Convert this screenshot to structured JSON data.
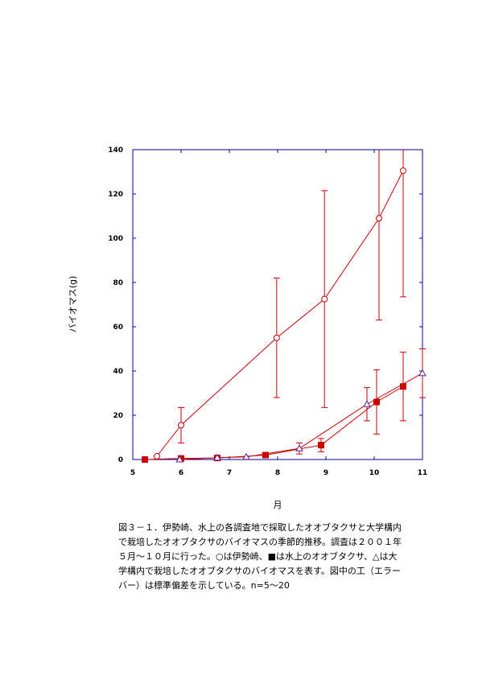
{
  "chart_data": {
    "type": "line",
    "title": "",
    "xlabel": "月",
    "ylabel": "バイオマス(g)",
    "xlim": [
      5,
      11
    ],
    "ylim": [
      0,
      140
    ],
    "x_ticks": [
      "5",
      "6",
      "7",
      "8",
      "9",
      "10",
      "11"
    ],
    "y_ticks": [
      "0",
      "20",
      "40",
      "60",
      "80",
      "100",
      "120",
      "140"
    ],
    "grid": false,
    "legend": "none",
    "series": [
      {
        "marker": "circle-open",
        "color": "#cc0000",
        "points": [
          {
            "x": 5.5,
            "y": 1.5,
            "err": 0
          },
          {
            "x": 6.0,
            "y": 15.5,
            "err": 8
          },
          {
            "x": 7.98,
            "y": 55,
            "err": 27
          },
          {
            "x": 8.97,
            "y": 72.5,
            "err": 49
          },
          {
            "x": 10.1,
            "y": 109,
            "err": 46
          },
          {
            "x": 10.6,
            "y": 130.5,
            "err": 57
          }
        ]
      },
      {
        "marker": "square-filled",
        "color": "#cc0000",
        "points": [
          {
            "x": 5.25,
            "y": 0,
            "err": 0
          },
          {
            "x": 6.0,
            "y": 0.5,
            "err": 0
          },
          {
            "x": 6.75,
            "y": 0.7,
            "err": 0
          },
          {
            "x": 7.75,
            "y": 2,
            "err": 0
          },
          {
            "x": 8.9,
            "y": 6.5,
            "err": 3
          },
          {
            "x": 10.05,
            "y": 26,
            "err": 14.5
          },
          {
            "x": 10.6,
            "y": 33,
            "err": 15.5
          }
        ]
      },
      {
        "marker": "triangle-open",
        "color": "#cc0000",
        "points": [
          {
            "x": 5.97,
            "y": 0,
            "err": 0
          },
          {
            "x": 6.75,
            "y": 0.8,
            "err": 0
          },
          {
            "x": 7.35,
            "y": 1.2,
            "err": 0
          },
          {
            "x": 8.45,
            "y": 5,
            "err": 2.5
          },
          {
            "x": 9.85,
            "y": 25,
            "err": 7.5
          },
          {
            "x": 11.0,
            "y": 39,
            "err": 11
          }
        ]
      }
    ]
  },
  "caption": {
    "lines": [
      "図３－１．伊勢崎、水上の各調査地で採取したオオブタクサと大学構内",
      "で栽培したオオブタクサのバイオマスの季節的推移。調査は２００１年",
      "５月～１０月に行った。○は伊勢崎、■は水上のオオブタクサ、△は大",
      "学構内で栽培したオオブタクサのバイオマスを表す。図中の工（エラー",
      "バー）は標準偏差を示している。n=5～20"
    ]
  }
}
